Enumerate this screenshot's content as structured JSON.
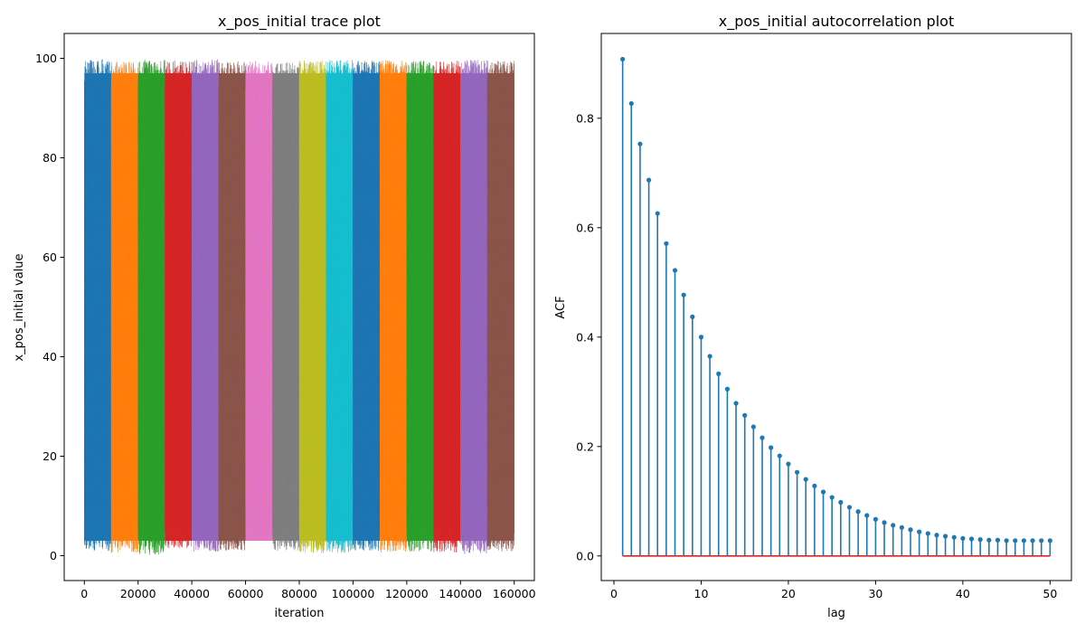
{
  "chart_data": [
    {
      "type": "line",
      "title": "x_pos_initial trace plot",
      "xlabel": "iteration",
      "ylabel": "x_pos_initial value",
      "xlim": [
        -7500,
        167500
      ],
      "ylim": [
        -5,
        105
      ],
      "xticks": [
        0,
        20000,
        40000,
        60000,
        80000,
        100000,
        120000,
        140000,
        160000
      ],
      "xtick_labels": [
        "0",
        "20000",
        "40000",
        "60000",
        "80000",
        "100000",
        "120000",
        "140000",
        "160000"
      ],
      "yticks": [
        0,
        20,
        40,
        60,
        80,
        100
      ],
      "ytick_labels": [
        "0",
        "20",
        "40",
        "60",
        "80",
        "100"
      ],
      "grid": false,
      "series": [
        {
          "x_range": [
            0,
            10000
          ],
          "y_range": [
            1,
            99.8
          ],
          "color": "#1f77b4"
        },
        {
          "x_range": [
            10000,
            20000
          ],
          "y_range": [
            0.5,
            99.5
          ],
          "color": "#ff7f0e"
        },
        {
          "x_range": [
            20000,
            30000
          ],
          "y_range": [
            0.2,
            99.7
          ],
          "color": "#2ca02c"
        },
        {
          "x_range": [
            30000,
            40000
          ],
          "y_range": [
            1.5,
            99.6
          ],
          "color": "#d62728"
        },
        {
          "x_range": [
            40000,
            50000
          ],
          "y_range": [
            0.8,
            99.8
          ],
          "color": "#9467bd"
        },
        {
          "x_range": [
            50000,
            60000
          ],
          "y_range": [
            1,
            99.4
          ],
          "color": "#8c564b"
        },
        {
          "x_range": [
            60000,
            70000
          ],
          "y_range": [
            3,
            99.5
          ],
          "color": "#e377c2"
        },
        {
          "x_range": [
            70000,
            80000
          ],
          "y_range": [
            1,
            99.3
          ],
          "color": "#7f7f7f"
        },
        {
          "x_range": [
            80000,
            90000
          ],
          "y_range": [
            0.5,
            99.6
          ],
          "color": "#bcbd22"
        },
        {
          "x_range": [
            90000,
            100000
          ],
          "y_range": [
            0.6,
            99.7
          ],
          "color": "#17becf"
        },
        {
          "x_range": [
            100000,
            110000
          ],
          "y_range": [
            1,
            99.6
          ],
          "color": "#1f77b4"
        },
        {
          "x_range": [
            110000,
            120000
          ],
          "y_range": [
            0.5,
            99.7
          ],
          "color": "#ff7f0e"
        },
        {
          "x_range": [
            120000,
            130000
          ],
          "y_range": [
            0.8,
            99.5
          ],
          "color": "#2ca02c"
        },
        {
          "x_range": [
            130000,
            140000
          ],
          "y_range": [
            0.6,
            99.6
          ],
          "color": "#d62728"
        },
        {
          "x_range": [
            140000,
            150000
          ],
          "y_range": [
            0.3,
            99.7
          ],
          "color": "#9467bd"
        },
        {
          "x_range": [
            150000,
            160000
          ],
          "y_range": [
            0.8,
            99.5
          ],
          "color": "#8c564b"
        }
      ]
    },
    {
      "type": "stem",
      "title": "x_pos_initial autocorrelation plot",
      "xlabel": "lag",
      "ylabel": "ACF",
      "xlim": [
        -1.45,
        52.45
      ],
      "ylim": [
        -0.045,
        0.955
      ],
      "xticks": [
        0,
        10,
        20,
        30,
        40,
        50
      ],
      "xtick_labels": [
        "0",
        "10",
        "20",
        "30",
        "40",
        "50"
      ],
      "yticks": [
        0.0,
        0.2,
        0.4,
        0.6,
        0.8
      ],
      "ytick_labels": [
        "0.0",
        "0.2",
        "0.4",
        "0.6",
        "0.8"
      ],
      "grid": false,
      "stem_color": "#1f77b4",
      "baseline_color": "#d62728",
      "x": [
        1,
        2,
        3,
        4,
        5,
        6,
        7,
        8,
        9,
        10,
        11,
        12,
        13,
        14,
        15,
        16,
        17,
        18,
        19,
        20,
        21,
        22,
        23,
        24,
        25,
        26,
        27,
        28,
        29,
        30,
        31,
        32,
        33,
        34,
        35,
        36,
        37,
        38,
        39,
        40,
        41,
        42,
        43,
        44,
        45,
        46,
        47,
        48,
        49,
        50
      ],
      "values": [
        0.908,
        0.827,
        0.753,
        0.687,
        0.626,
        0.571,
        0.522,
        0.477,
        0.437,
        0.4,
        0.365,
        0.333,
        0.305,
        0.279,
        0.257,
        0.236,
        0.216,
        0.198,
        0.183,
        0.168,
        0.153,
        0.14,
        0.128,
        0.117,
        0.107,
        0.098,
        0.089,
        0.081,
        0.074,
        0.067,
        0.061,
        0.056,
        0.052,
        0.048,
        0.044,
        0.041,
        0.038,
        0.036,
        0.034,
        0.032,
        0.031,
        0.03,
        0.029,
        0.029,
        0.028,
        0.028,
        0.028,
        0.028,
        0.028,
        0.028
      ]
    }
  ]
}
